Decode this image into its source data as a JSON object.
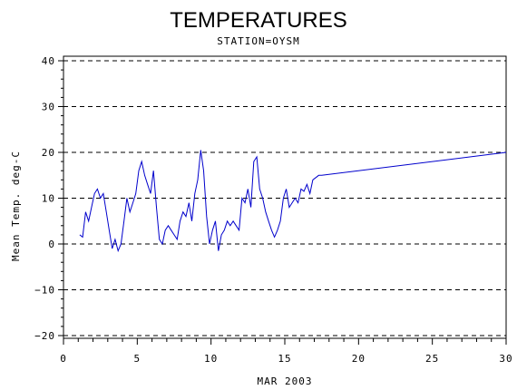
{
  "chart_data": {
    "type": "line",
    "title": "TEMPERATURES",
    "subtitle": "STATION=OYSM",
    "xlabel": "MAR 2003",
    "ylabel": "Mean Temp. deg-C",
    "xlim": [
      0,
      30
    ],
    "ylim": [
      -20,
      40
    ],
    "xticks": [
      0,
      5,
      10,
      15,
      20,
      25,
      30
    ],
    "yticks": [
      -20,
      -10,
      0,
      10,
      20,
      30,
      40
    ],
    "grid": "horizontal dashed",
    "colors": {
      "series": "#0000cc",
      "grid": "#000000"
    },
    "series": [
      {
        "x": [
          1.1,
          1.3,
          1.5,
          1.7,
          1.9,
          2.1,
          2.3,
          2.5,
          2.7,
          2.9,
          3.1,
          3.3,
          3.5,
          3.7,
          3.9,
          4.1,
          4.3,
          4.5,
          4.7,
          4.9,
          5.1,
          5.3,
          5.5,
          5.7,
          5.9,
          6.1,
          6.3,
          6.5,
          6.7,
          6.9,
          7.1,
          7.3,
          7.5,
          7.7,
          7.9,
          8.1,
          8.3,
          8.5,
          8.7,
          8.9,
          9.1,
          9.3,
          9.5,
          9.7,
          9.9,
          10.1,
          10.3,
          10.5,
          10.7,
          10.9,
          11.1,
          11.3,
          11.5,
          11.7,
          11.9,
          12.1,
          12.3,
          12.5,
          12.7,
          12.9,
          13.1,
          13.3,
          13.5,
          13.7,
          13.9,
          14.1,
          14.3,
          14.5,
          14.7,
          14.9,
          15.1,
          15.3,
          15.5,
          15.7,
          15.9,
          16.1,
          16.3,
          16.5,
          16.7,
          16.9,
          17.1,
          17.3,
          17.5,
          30
        ],
        "values": [
          2,
          1.5,
          7,
          5,
          8,
          11,
          12,
          10,
          11,
          7,
          3,
          -1,
          1,
          -1.5,
          0,
          5,
          10,
          7,
          9,
          11,
          16,
          18,
          15,
          13,
          11,
          16,
          8,
          1,
          0,
          3,
          4,
          3,
          2,
          1,
          5,
          7,
          6,
          9,
          5,
          11,
          14,
          20.5,
          16,
          6,
          0,
          3,
          5,
          -1.5,
          2,
          3,
          5,
          4,
          5,
          4,
          3,
          10,
          9,
          12,
          8,
          18,
          19,
          12,
          10,
          7,
          5,
          3,
          1.5,
          3,
          5,
          10,
          12,
          8,
          9,
          10,
          9,
          12,
          11.5,
          13,
          11,
          14,
          14.5,
          15,
          15,
          20
        ]
      }
    ]
  }
}
